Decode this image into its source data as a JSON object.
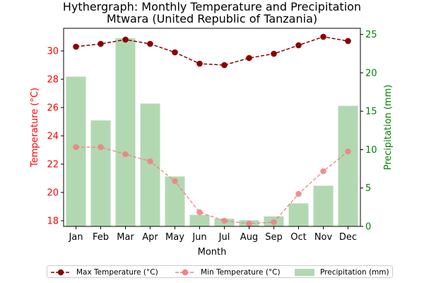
{
  "chart_data": {
    "type": "line",
    "title": "Hythergraph: Monthly Temperature and Precipitation",
    "subtitle": "Mtwara (United Republic of Tanzania)",
    "xlabel": "Month",
    "ylabel_left": "Temperature (°C)",
    "ylabel_right": "Precipitation (mm)",
    "categories": [
      "Jan",
      "Feb",
      "Mar",
      "Apr",
      "May",
      "Jun",
      "Jul",
      "Aug",
      "Sep",
      "Oct",
      "Nov",
      "Dec"
    ],
    "ylim_left": [
      17.6,
      31.6
    ],
    "ylim_right": [
      0,
      25.8
    ],
    "yticks_left": [
      18,
      20,
      22,
      24,
      26,
      28,
      30
    ],
    "yticks_right": [
      0,
      5,
      10,
      15,
      20,
      25
    ],
    "series": [
      {
        "name": "Max Temperature (°C)",
        "type": "line",
        "axis": "left",
        "color": "#8b0000",
        "values": [
          30.3,
          30.5,
          30.8,
          30.5,
          29.9,
          29.1,
          29.0,
          29.5,
          29.8,
          30.4,
          31.0,
          30.7
        ]
      },
      {
        "name": "Min Temperature (°C)",
        "type": "line",
        "axis": "left",
        "color": "#f08080",
        "values": [
          23.2,
          23.2,
          22.7,
          22.2,
          20.8,
          18.6,
          18.0,
          17.8,
          17.9,
          19.9,
          21.5,
          22.9
        ]
      },
      {
        "name": "Precipitation (mm)",
        "type": "bar",
        "axis": "right",
        "color": "#b2d8b2",
        "values": [
          19.5,
          13.8,
          24.5,
          16.0,
          6.5,
          1.5,
          1.0,
          0.8,
          1.3,
          3.0,
          5.3,
          15.7
        ]
      }
    ],
    "grid": false,
    "legend": "bottom"
  }
}
